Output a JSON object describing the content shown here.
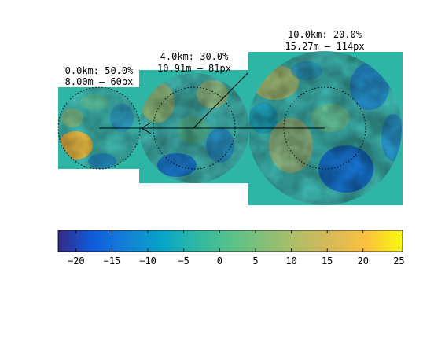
{
  "chart_data": {
    "type": "heatmap",
    "panels": [
      {
        "label_line1": "0.0km: 50.0%",
        "label_line2": "8.00m – 60px"
      },
      {
        "label_line1": "4.0km: 30.0%",
        "label_line2": "10.91m – 81px"
      },
      {
        "label_line1": "10.0km: 20.0%",
        "label_line2": "15.27m – 114px"
      }
    ],
    "colorbar": {
      "ticks": [
        -20,
        -15,
        -10,
        -5,
        0,
        5,
        10,
        15,
        20,
        25
      ],
      "tick_labels": [
        "−20",
        "−15",
        "−10",
        "−5",
        "0",
        "5",
        "10",
        "15",
        "20",
        "25"
      ],
      "range": [
        -22.5,
        25.5
      ],
      "colormap": "parula"
    },
    "colors": {
      "background_fill": "#2db5a6",
      "parula_low": "#352a87",
      "parula_high": "#f9fb0e"
    }
  }
}
